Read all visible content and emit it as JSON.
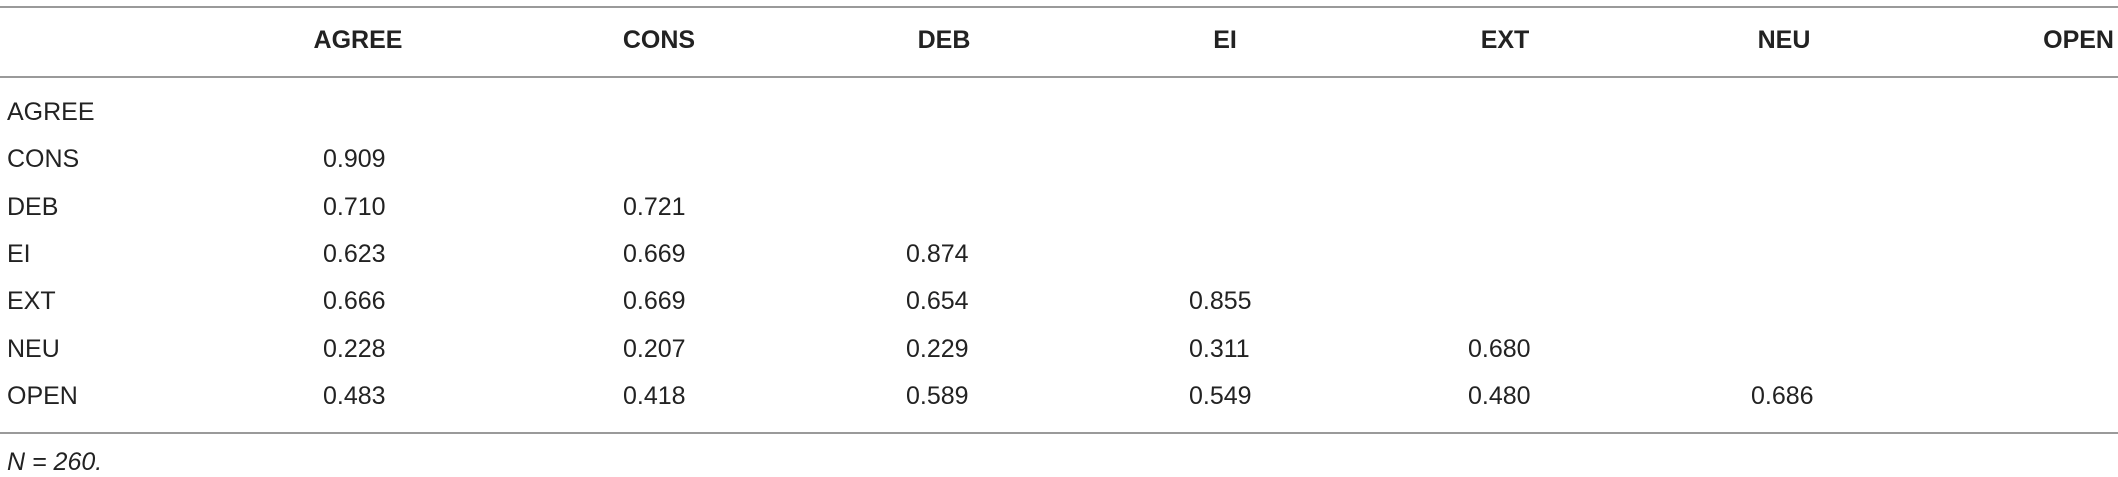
{
  "table": {
    "columns": [
      "AGREE",
      "CONS",
      "DEB",
      "EI",
      "EXT",
      "NEU",
      "OPEN"
    ],
    "rows": [
      {
        "label": "AGREE",
        "cells": []
      },
      {
        "label": "CONS",
        "cells": [
          "0.909"
        ]
      },
      {
        "label": "DEB",
        "cells": [
          "0.710",
          "0.721"
        ]
      },
      {
        "label": "EI",
        "cells": [
          "0.623",
          "0.669",
          "0.874"
        ]
      },
      {
        "label": "EXT",
        "cells": [
          "0.666",
          "0.669",
          "0.654",
          "0.855"
        ]
      },
      {
        "label": "NEU",
        "cells": [
          "0.228",
          "0.207",
          "0.229",
          "0.311",
          "0.680"
        ]
      },
      {
        "label": "OPEN",
        "cells": [
          "0.483",
          "0.418",
          "0.589",
          "0.549",
          "0.480",
          "0.686"
        ]
      }
    ],
    "note": "N = 260."
  }
}
